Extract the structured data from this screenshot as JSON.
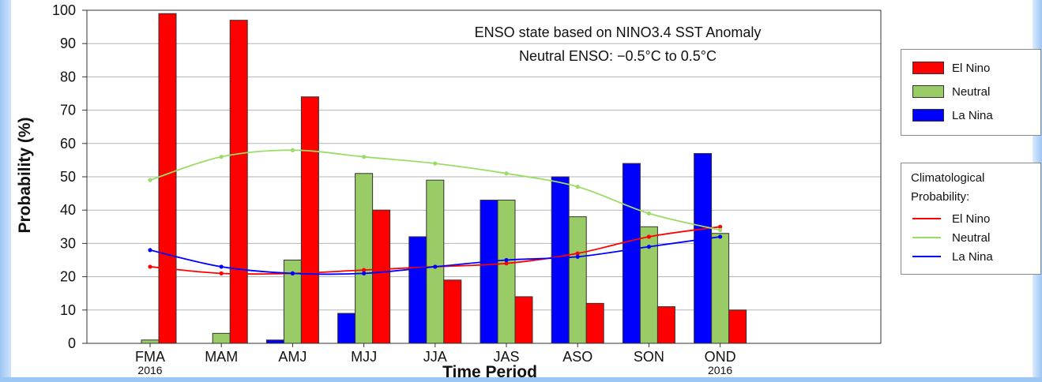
{
  "chart_data": {
    "type": "bar",
    "title": "ENSO state based on NINO3.4 SST Anomaly",
    "subtitle": "Neutral ENSO: −0.5°C to 0.5°C",
    "xlabel": "Time Period",
    "ylabel": "Probability (%)",
    "ylim": [
      0,
      100
    ],
    "yticks": [
      0,
      10,
      20,
      30,
      40,
      50,
      60,
      70,
      80,
      90,
      100
    ],
    "grid": true,
    "categories": [
      "FMA",
      "MAM",
      "AMJ",
      "MJJ",
      "JJA",
      "JAS",
      "ASO",
      "SON",
      "OND"
    ],
    "year_labels": [
      {
        "category": "FMA",
        "text": "2016"
      },
      {
        "category": "OND",
        "text": "2016"
      }
    ],
    "series": [
      {
        "name": "La Nina",
        "color": "#0000ff",
        "values": [
          0,
          0,
          1,
          9,
          32,
          43,
          50,
          54,
          57
        ]
      },
      {
        "name": "Neutral",
        "color": "#99cc66",
        "values": [
          1,
          3,
          25,
          51,
          49,
          43,
          38,
          35,
          33
        ]
      },
      {
        "name": "El Nino",
        "color": "#ff0000",
        "values": [
          99,
          97,
          74,
          40,
          19,
          14,
          12,
          11,
          10
        ]
      }
    ],
    "climatology_title": [
      "Climatological",
      "Probability:"
    ],
    "climatology": [
      {
        "name": "El Nino",
        "color": "#ff0000",
        "values": [
          23,
          21,
          21,
          22,
          23,
          24,
          27,
          32,
          35
        ]
      },
      {
        "name": "Neutral",
        "color": "#99dd66",
        "values": [
          49,
          56,
          58,
          56,
          54,
          51,
          47,
          39,
          34
        ]
      },
      {
        "name": "La Nina",
        "color": "#0000ff",
        "values": [
          28,
          23,
          21,
          21,
          23,
          25,
          26,
          29,
          32
        ]
      }
    ],
    "legend_order": [
      "El Nino",
      "Neutral",
      "La Nina"
    ],
    "legend_position": "right"
  }
}
